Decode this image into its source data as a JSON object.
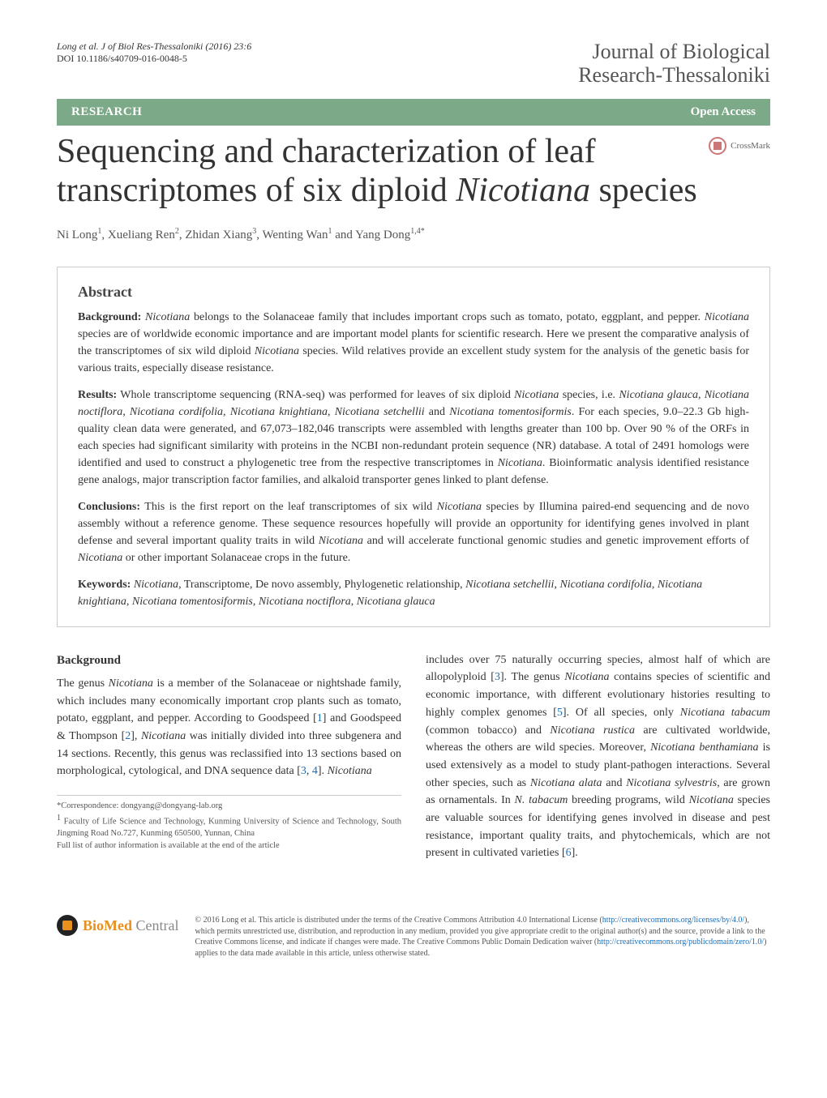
{
  "header": {
    "citation": "Long et al. J of Biol Res-Thessaloniki  (2016) 23:6",
    "doi": "DOI 10.1186/s40709-016-0048-5",
    "journal_line1": "Journal of Biological",
    "journal_line2": "Research-Thessaloniki"
  },
  "bar": {
    "research": "RESEARCH",
    "open_access": "Open Access"
  },
  "crossmark": "CrossMark",
  "title": "Sequencing and characterization of leaf transcriptomes of six diploid Nicotiana species",
  "authors_html": "Ni Long<sup>1</sup>, Xueliang Ren<sup>2</sup>, Zhidan Xiang<sup>3</sup>, Wenting Wan<sup>1</sup> and Yang Dong<sup>1,4*</sup>",
  "abstract": {
    "heading": "Abstract",
    "background_label": "Background:",
    "background": "Nicotiana belongs to the Solanaceae family that includes important crops such as tomato, potato, eggplant, and pepper. Nicotiana species are of worldwide economic importance and are important model plants for scientific research. Here we present the comparative analysis of the transcriptomes of six wild diploid Nicotiana species. Wild relatives provide an excellent study system for the analysis of the genetic basis for various traits, especially disease resistance.",
    "results_label": "Results:",
    "results": "Whole transcriptome sequencing (RNA-seq) was performed for leaves of six diploid Nicotiana species, i.e. Nicotiana glauca, Nicotiana noctiflora, Nicotiana cordifolia, Nicotiana knightiana, Nicotiana setchellii and Nicotiana tomentosiformis. For each species, 9.0–22.3 Gb high-quality clean data were generated, and 67,073–182,046 transcripts were assembled with lengths greater than 100 bp. Over 90 % of the ORFs in each species had significant similarity with proteins in the NCBI non-redundant protein sequence (NR) database. A total of 2491 homologs were identified and used to construct a phylogenetic tree from the respective transcriptomes in Nicotiana. Bioinformatic analysis identified resistance gene analogs, major transcription factor families, and alkaloid transporter genes linked to plant defense.",
    "conclusions_label": "Conclusions:",
    "conclusions": "This is the first report on the leaf transcriptomes of six wild Nicotiana species by Illumina paired-end sequencing and de novo assembly without a reference genome. These sequence resources hopefully will provide an opportunity for identifying genes involved in plant defense and several important quality traits in wild Nicotiana and will accelerate functional genomic studies and genetic improvement efforts of Nicotiana or other important Solanaceae crops in the future.",
    "keywords_label": "Keywords:",
    "keywords": "Nicotiana, Transcriptome, De novo assembly, Phylogenetic relationship, Nicotiana setchellii, Nicotiana cordifolia, Nicotiana knightiana, Nicotiana tomentosiformis, Nicotiana noctiflora, Nicotiana glauca"
  },
  "body": {
    "heading": "Background",
    "col1": "The genus Nicotiana is a member of the Solanaceae or nightshade family, which includes many economically important crop plants such as tomato, potato, eggplant, and pepper. According to Goodspeed [1] and Goodspeed & Thompson [2], Nicotiana was initially divided into three subgenera and 14 sections. Recently, this genus was reclassified into 13 sections based on morphological, cytological, and DNA sequence data [3, 4]. Nicotiana",
    "col2": "includes over 75 naturally occurring species, almost half of which are allopolyploid [3]. The genus Nicotiana contains species of scientific and economic importance, with different evolutionary histories resulting to highly complex genomes [5]. Of all species, only Nicotiana tabacum (common tobacco) and Nicotiana rustica are cultivated worldwide, whereas the others are wild species. Moreover, Nicotiana benthamiana is used extensively as a model to study plant-pathogen interactions. Several other species, such as Nicotiana alata and Nicotiana sylvestris, are grown as ornamentals. In N. tabacum breeding programs, wild Nicotiana species are valuable sources for identifying genes involved in disease and pest resistance, important quality traits, and phytochemicals, which are not present in cultivated varieties [6]."
  },
  "footnote": {
    "correspondence": "*Correspondence:  dongyang@dongyang-lab.org",
    "affiliation": "1 Faculty of Life Science and Technology, Kunming University of Science and Technology, South Jingming Road No.727, Kunming 650500, Yunnan, China",
    "full_list": "Full list of author information is available at the end of the article"
  },
  "footer": {
    "logo_bio": "BioMed",
    "logo_central": " Central",
    "license": "© 2016 Long et al. This article is distributed under the terms of the Creative Commons Attribution 4.0 International License (http://creativecommons.org/licenses/by/4.0/), which permits unrestricted use, distribution, and reproduction in any medium, provided you give appropriate credit to the original author(s) and the source, provide a link to the Creative Commons license, and indicate if changes were made. The Creative Commons Public Domain Dedication waiver (http://creativecommons.org/publicdomain/zero/1.0/) applies to the data made available in this article, unless otherwise stated."
  },
  "colors": {
    "bar_bg": "#7ca987",
    "link": "#1a6eb8",
    "logo_orange": "#e8901f"
  }
}
